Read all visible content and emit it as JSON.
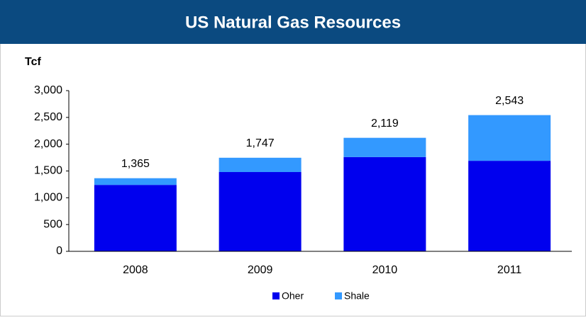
{
  "chart_data": {
    "type": "stacked_bar",
    "title": "US Natural Gas Resources",
    "y_label": "Tcf",
    "categories": [
      "2008",
      "2009",
      "2010",
      "2011"
    ],
    "series": [
      {
        "name": "Oher",
        "color": "#0000ee",
        "values": [
          1240,
          1480,
          1760,
          1690
        ]
      },
      {
        "name": "Shale",
        "color": "#3399ff",
        "values": [
          125,
          267,
          359,
          853
        ]
      }
    ],
    "totals": {
      "values": [
        1365,
        1747,
        2119,
        2543
      ],
      "value_labels": [
        "1,365",
        "1,747",
        "2,119",
        "2,543"
      ]
    },
    "ylim": [
      0,
      3000
    ],
    "yticks": [
      0,
      500,
      {
        "value": 1000,
        "label": "1,000"
      },
      {
        "value": 1500,
        "label": "1,500"
      },
      {
        "value": 2000,
        "label": "2,000"
      },
      {
        "value": 2500,
        "label": "2,500"
      },
      {
        "value": 3000,
        "label": "3,000"
      }
    ],
    "grid": false,
    "legend": "bottom"
  }
}
